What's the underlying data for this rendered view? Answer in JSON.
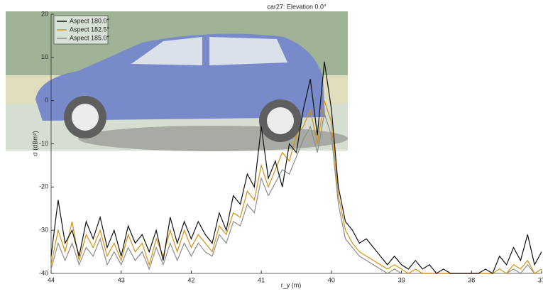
{
  "chart_data": {
    "type": "line",
    "title": "car27:  Elevation 0.0°",
    "x_label": "r_y (m)",
    "y_label": "σ (dBm²)",
    "x": [
      44.0,
      43.9,
      43.8,
      43.7,
      43.6,
      43.5,
      43.4,
      43.3,
      43.2,
      43.1,
      43.0,
      42.9,
      42.8,
      42.7,
      42.6,
      42.5,
      42.4,
      42.3,
      42.2,
      42.1,
      42.0,
      41.9,
      41.8,
      41.7,
      41.6,
      41.5,
      41.4,
      41.3,
      41.2,
      41.1,
      41.0,
      40.9,
      40.8,
      40.7,
      40.6,
      40.5,
      40.4,
      40.3,
      40.2,
      40.1,
      40.0,
      39.9,
      39.8,
      39.7,
      39.6,
      39.5,
      39.4,
      39.3,
      39.2,
      39.1,
      39.0,
      38.9,
      38.8,
      38.7,
      38.6,
      38.5,
      38.4,
      38.3,
      38.2,
      38.1,
      38.0,
      37.9,
      37.8,
      37.7,
      37.6,
      37.5,
      37.4,
      37.3,
      37.2,
      37.1,
      37.0
    ],
    "series": [
      {
        "name": "Aspect 180.0°",
        "color": "#111111",
        "values": [
          -36,
          -23,
          -33,
          -30,
          -36,
          -28,
          -32,
          -27,
          -34,
          -30,
          -36,
          -29,
          -33,
          -31,
          -35,
          -30,
          -37,
          -27,
          -33,
          -28,
          -32,
          -28,
          -31,
          -33,
          -26,
          -30,
          -22,
          -24,
          -17,
          -20,
          -6,
          -18,
          -14,
          -20,
          -10,
          -12,
          -2,
          5,
          -8,
          9,
          -2,
          -20,
          -28,
          -30,
          -33,
          -32,
          -34,
          -36,
          -38,
          -36,
          -38,
          -39,
          -37,
          -39,
          -38,
          -40,
          -39,
          -40,
          -40,
          -40,
          -40,
          -40,
          -39,
          -40,
          -36,
          -38,
          -34,
          -37,
          -31,
          -38,
          -35
        ]
      },
      {
        "name": "Aspect 182.5°",
        "color": "#d4900f",
        "values": [
          -38,
          -30,
          -35,
          -28,
          -37,
          -31,
          -34,
          -30,
          -36,
          -33,
          -37,
          -31,
          -35,
          -33,
          -38,
          -32,
          -36,
          -30,
          -35,
          -30,
          -34,
          -31,
          -33,
          -35,
          -29,
          -31,
          -26,
          -27,
          -21,
          -23,
          -15,
          -20,
          -16,
          -12,
          -14,
          -8,
          -6,
          -2,
          -10,
          0,
          -5,
          -22,
          -30,
          -33,
          -35,
          -36,
          -37,
          -38,
          -39,
          -38,
          -39,
          -40,
          -39,
          -40,
          -40,
          -40,
          -40,
          -40,
          -40,
          -40,
          -40,
          -40,
          -40,
          -40,
          -39,
          -40,
          -38,
          -39,
          -37,
          -40,
          -39
        ]
      },
      {
        "name": "Aspect 185.0°",
        "color": "#8c8c8c",
        "values": [
          -39,
          -33,
          -37,
          -33,
          -38,
          -34,
          -36,
          -32,
          -38,
          -35,
          -38,
          -34,
          -37,
          -35,
          -39,
          -34,
          -38,
          -33,
          -37,
          -33,
          -36,
          -33,
          -35,
          -36,
          -31,
          -33,
          -28,
          -29,
          -24,
          -26,
          -18,
          -22,
          -19,
          -16,
          -17,
          -13,
          -9,
          -6,
          -12,
          -3,
          -8,
          -24,
          -32,
          -34,
          -36,
          -37,
          -38,
          -39,
          -40,
          -39,
          -40,
          -40,
          -40,
          -40,
          -40,
          -40,
          -40,
          -40,
          -40,
          -40,
          -40,
          -40,
          -40,
          -40,
          -40,
          -40,
          -39,
          -40,
          -38,
          -40,
          -40
        ]
      }
    ],
    "xlim": [
      44,
      37
    ],
    "xticks": [
      44,
      43,
      42,
      41,
      40,
      39,
      38,
      37
    ],
    "ylim": [
      -40,
      20
    ],
    "yticks": [
      20,
      10,
      0,
      -10,
      -20,
      -30,
      -40
    ],
    "grid": false,
    "legend": "upper left"
  }
}
